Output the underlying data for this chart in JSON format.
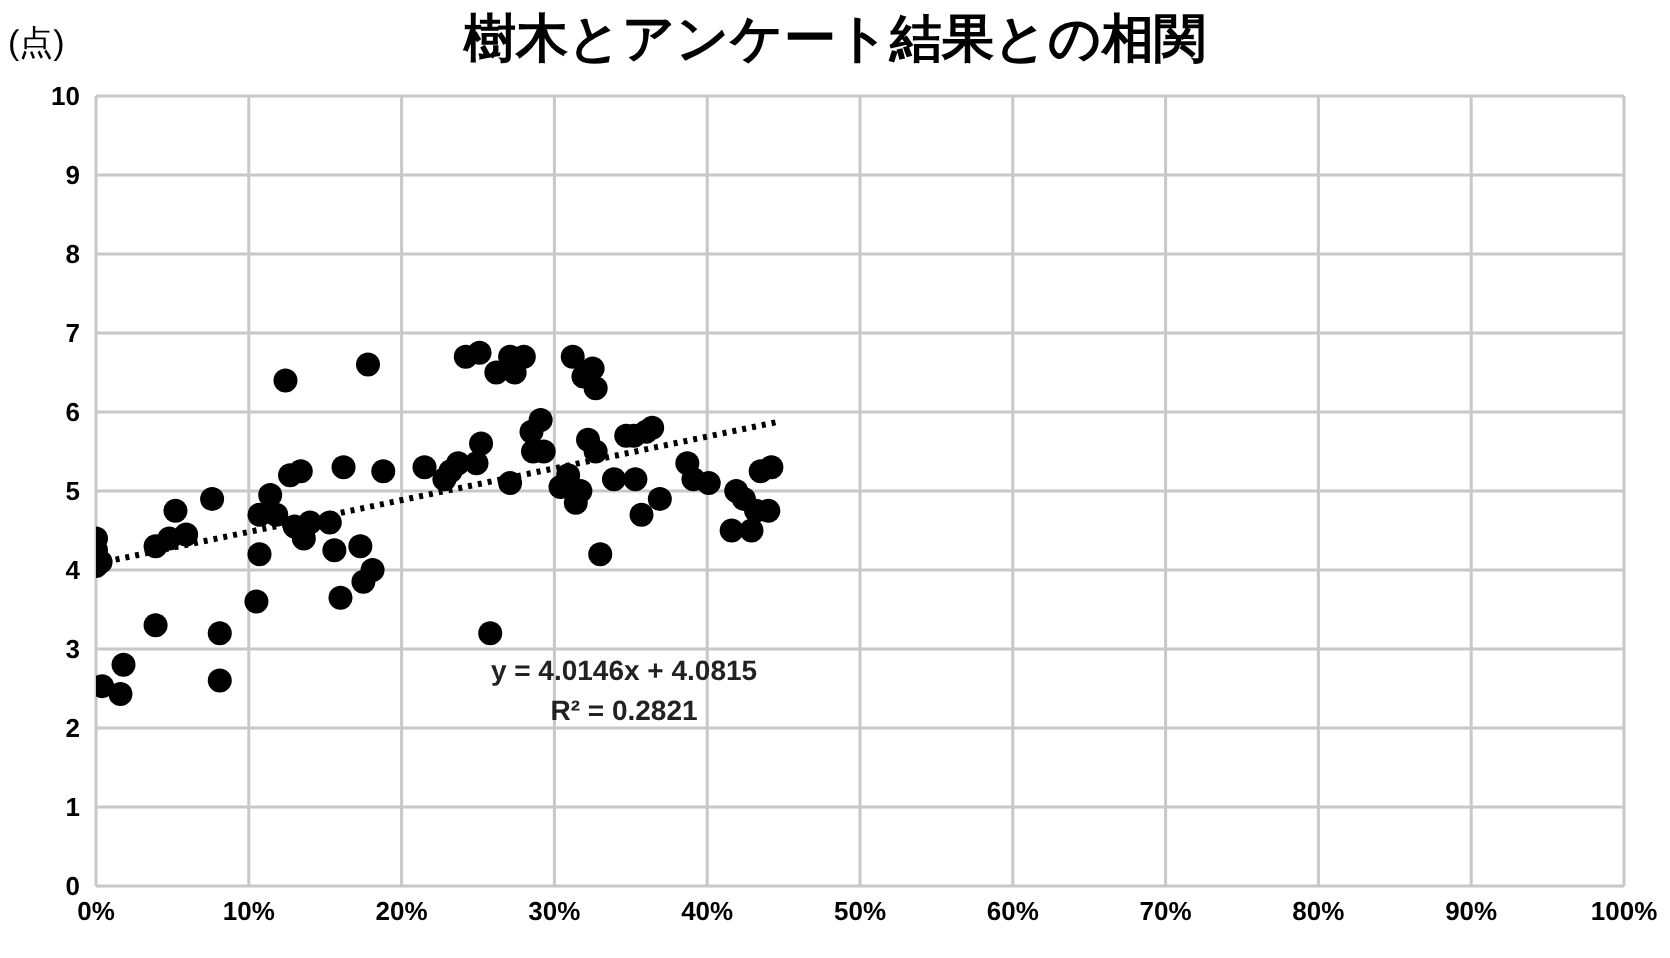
{
  "chart_data": {
    "type": "scatter",
    "title": "樹木とアンケート結果との相関",
    "ylabel": "(点)",
    "marker": "circle",
    "grid": true,
    "xlim": [
      0,
      1
    ],
    "xticks": [
      {
        "value": 0,
        "label": "0%"
      },
      {
        "value": 0.1,
        "label": "10%"
      },
      {
        "value": 0.2,
        "label": "20%"
      },
      {
        "value": 0.3,
        "label": "30%"
      },
      {
        "value": 0.4,
        "label": "40%"
      },
      {
        "value": 0.5,
        "label": "50%"
      },
      {
        "value": 0.6,
        "label": "60%"
      },
      {
        "value": 0.7,
        "label": "70%"
      },
      {
        "value": 0.8,
        "label": "80%"
      },
      {
        "value": 0.9,
        "label": "90%"
      },
      {
        "value": 1,
        "label": "100%"
      }
    ],
    "ylim": [
      0,
      10
    ],
    "yticks": [
      0,
      1,
      2,
      3,
      4,
      5,
      6,
      7,
      8,
      9,
      10
    ],
    "annotations": [
      "y = 4.0146x + 4.0815",
      "R² = 0.2821"
    ],
    "series": [
      {
        "type": "scatter",
        "color": "#000000",
        "x": [
          0,
          0,
          0,
          0.003,
          0.004,
          0.016,
          0.018,
          0.039,
          0.039,
          0.048,
          0.052,
          0.059,
          0.076,
          0.081,
          0.081,
          0.105,
          0.107,
          0.107,
          0.114,
          0.118,
          0.124,
          0.127,
          0.13,
          0.134,
          0.136,
          0.14,
          0.153,
          0.156,
          0.16,
          0.162,
          0.173,
          0.175,
          0.181,
          0.178,
          0.188,
          0.215,
          0.228,
          0.232,
          0.237,
          0.242,
          0.249,
          0.251,
          0.252,
          0.258,
          0.262,
          0.271,
          0.274,
          0.271,
          0.28,
          0.285,
          0.291,
          0.286,
          0.293,
          0.304,
          0.309,
          0.312,
          0.314,
          0.317,
          0.319,
          0.325,
          0.327,
          0.322,
          0.327,
          0.33,
          0.339,
          0.347,
          0.352,
          0.353,
          0.357,
          0.36,
          0.364,
          0.369,
          0.387,
          0.391,
          0.401,
          0.416,
          0.419,
          0.424,
          0.429,
          0.432,
          0.435,
          0.442,
          0.44
        ],
        "values": [
          4.4,
          4.25,
          4.05,
          4.1,
          2.53,
          2.43,
          2.8,
          3.3,
          4.3,
          4.4,
          4.75,
          4.45,
          4.9,
          3.2,
          2.6,
          3.6,
          4.2,
          4.7,
          4.95,
          4.7,
          6.4,
          5.2,
          4.55,
          5.25,
          4.4,
          4.6,
          4.6,
          4.25,
          3.65,
          5.3,
          4.3,
          3.85,
          4.0,
          6.6,
          5.25,
          5.3,
          5.15,
          5.25,
          5.35,
          6.7,
          5.35,
          6.75,
          5.6,
          3.2,
          6.5,
          6.7,
          6.5,
          5.1,
          6.7,
          5.75,
          5.9,
          5.5,
          5.5,
          5.05,
          5.2,
          6.7,
          4.85,
          5.0,
          6.45,
          6.55,
          6.3,
          5.65,
          5.5,
          4.2,
          5.15,
          5.7,
          5.7,
          5.15,
          4.7,
          5.75,
          5.8,
          4.9,
          5.35,
          5.15,
          5.1,
          4.5,
          5.0,
          4.9,
          4.5,
          4.75,
          5.25,
          5.3,
          4.75
        ]
      },
      {
        "type": "line",
        "color": "#000000",
        "line_style": "dotted",
        "marker": "none",
        "x": [
          0,
          0.445
        ],
        "values": [
          4.08,
          5.87
        ]
      }
    ]
  }
}
